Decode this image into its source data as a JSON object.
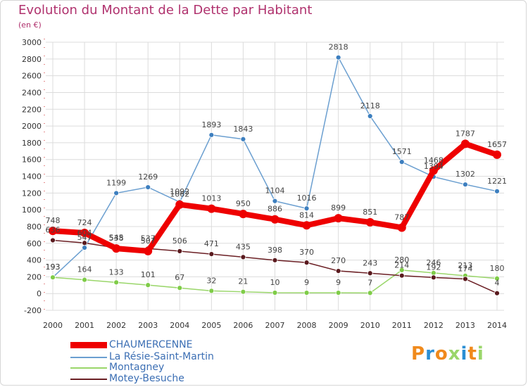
{
  "title": "Evolution du Montant de la Dette par Habitant",
  "subtitle": "(en €)",
  "logo": "Proxiti",
  "colors": {
    "title": "#b0326e",
    "grid": "#dcdcdc",
    "CHAUMERCENNE": "#ee0000",
    "La Résie-Saint-Martin": "#6b9fd0",
    "Montagney": "#9ad66a",
    "Motey-Besuche": "#6b1f24"
  },
  "chart_data": {
    "type": "line",
    "title": "Evolution du Montant de la Dette par Habitant",
    "subtitle": "(en €)",
    "categories": [
      "2000",
      "2001",
      "2002",
      "2003",
      "2004",
      "2005",
      "2006",
      "2007",
      "2008",
      "2009",
      "2010",
      "2011",
      "2012",
      "2013",
      "2014"
    ],
    "ylim": [
      -200,
      3000
    ],
    "yticks": [
      -200,
      0,
      200,
      400,
      600,
      800,
      1000,
      1200,
      1400,
      1600,
      1800,
      2000,
      2200,
      2400,
      2600,
      2800,
      3000
    ],
    "grid": true,
    "legend": "bottom-left",
    "series": [
      {
        "name": "La Résie-Saint-Martin",
        "values": [
          193,
          547,
          1199,
          1269,
          1092,
          1893,
          1843,
          1104,
          1016,
          2818,
          2118,
          1571,
          1394,
          1302,
          1221
        ],
        "labels": [
          "193",
          "547",
          "1199",
          "1269",
          "1092",
          "1893",
          "1843",
          "1104",
          "1016",
          "2818",
          "2118",
          "1571",
          "1394",
          "1302",
          "1221"
        ]
      },
      {
        "name": "Montagney",
        "values": [
          193,
          164,
          133,
          101,
          67,
          32,
          21,
          10,
          9,
          9,
          7,
          280,
          246,
          213,
          180
        ],
        "labels": [
          "193",
          "164",
          "133",
          "101",
          "67",
          "32",
          "21",
          "10",
          "9",
          "9",
          "7",
          "280",
          "246",
          "213",
          "180"
        ]
      },
      {
        "name": "Motey-Besuche",
        "values": [
          636,
          604,
          545,
          537,
          506,
          471,
          435,
          398,
          370,
          270,
          243,
          214,
          192,
          174,
          4
        ],
        "labels": [
          "636",
          "604",
          "545",
          "537",
          "506",
          "471",
          "435",
          "398",
          "370",
          "270",
          "243",
          "214",
          "192",
          "174",
          "4"
        ]
      },
      {
        "name": "CHAUMERCENNE",
        "values": [
          748,
          724,
          538,
          507,
          1062,
          1013,
          950,
          886,
          814,
          899,
          851,
          787,
          1468,
          1787,
          1657
        ],
        "labels": [
          "748",
          "724",
          "538",
          "507",
          "1062",
          "1013",
          "950",
          "886",
          "814",
          "899",
          "851",
          "787",
          "1468",
          "1787",
          "1657"
        ]
      }
    ]
  },
  "legend_items": [
    "CHAUMERCENNE",
    "La Résie-Saint-Martin",
    "Montagney",
    "Motey-Besuche"
  ]
}
